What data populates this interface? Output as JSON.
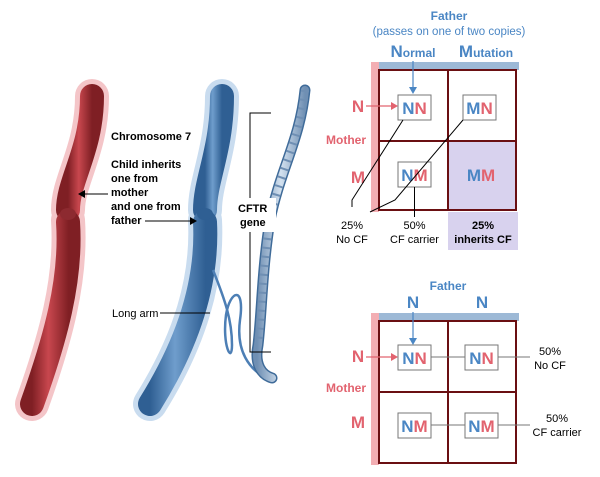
{
  "colors": {
    "maternal_chromosome": "#b8383f",
    "paternal_chromosome": "#4d7fb5",
    "father_blue": "#4a86c4",
    "mother_red": "#e2636f",
    "highlight": "#d8d2ee",
    "grid_line": "#6a0f12",
    "top_bar": "#9db9d6",
    "side_bar": "#f3aeb3"
  },
  "chromosome_labels": {
    "chromosome": "Chromosome 7",
    "inherit_1": "Child inherits",
    "inherit_2": "one from",
    "inherit_3": "mother",
    "inherit_4": "and one from",
    "inherit_5": "father",
    "gene_1": "CFTR",
    "gene_2": "gene",
    "long_arm": "Long arm"
  },
  "grid1": {
    "father_title": "Father",
    "father_subtitle": "(passes on one of two copies)",
    "col_headers": [
      {
        "big": "N",
        "rest": "ormal"
      },
      {
        "big": "M",
        "rest": "utation"
      }
    ],
    "row_headers": [
      "N",
      "M"
    ],
    "mother_label": "Mother",
    "cells": [
      {
        "a": "N",
        "b": "N"
      },
      {
        "a": "M",
        "b": "N"
      },
      {
        "a": "N",
        "b": "M"
      },
      {
        "a": "M",
        "b": "M"
      }
    ],
    "captions": [
      {
        "line1": "25%",
        "line2": "No CF"
      },
      {
        "line1": "50%",
        "line2": "CF carrier"
      },
      {
        "line1": "25%",
        "line2": "inherits CF"
      }
    ]
  },
  "grid2": {
    "father_title": "Father",
    "col_headers": [
      "N",
      "N"
    ],
    "row_headers": [
      "N",
      "M"
    ],
    "mother_label": "Mother",
    "cells": [
      {
        "a": "N",
        "b": "N"
      },
      {
        "a": "N",
        "b": "N"
      },
      {
        "a": "N",
        "b": "M"
      },
      {
        "a": "N",
        "b": "M"
      }
    ],
    "captions": [
      {
        "line1": "50%",
        "line2": "No CF"
      },
      {
        "line1": "50%",
        "line2": "CF carrier"
      }
    ]
  }
}
